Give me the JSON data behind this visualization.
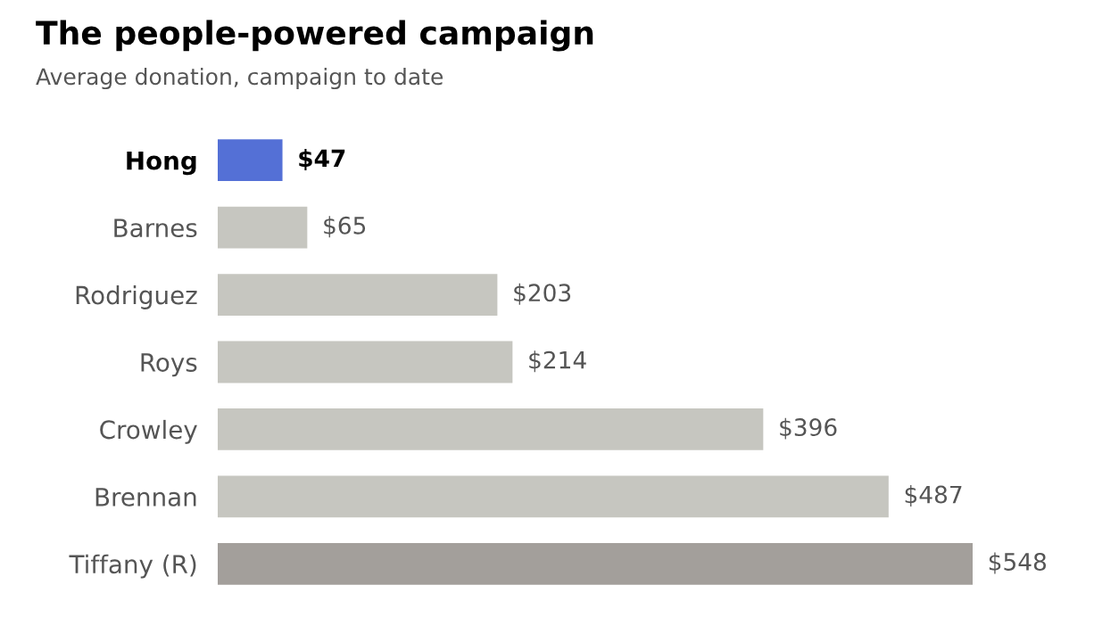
{
  "chart_data": {
    "type": "bar",
    "orientation": "horizontal",
    "title": "The people-powered campaign",
    "subtitle": "Average donation, campaign to date",
    "categories": [
      "Hong",
      "Barnes",
      "Rodriguez",
      "Roys",
      "Crowley",
      "Brennan",
      "Tiffany (R)"
    ],
    "values": [
      47,
      65,
      203,
      214,
      396,
      487,
      548
    ],
    "value_labels": [
      "$47",
      "$65",
      "$203",
      "$214",
      "$396",
      "$487",
      "$548"
    ],
    "colors": [
      "#5470d6",
      "#c6c6c0",
      "#c6c6c0",
      "#c6c6c0",
      "#c6c6c0",
      "#c6c6c0",
      "#a39f9b"
    ],
    "grid": false,
    "legend": false
  }
}
